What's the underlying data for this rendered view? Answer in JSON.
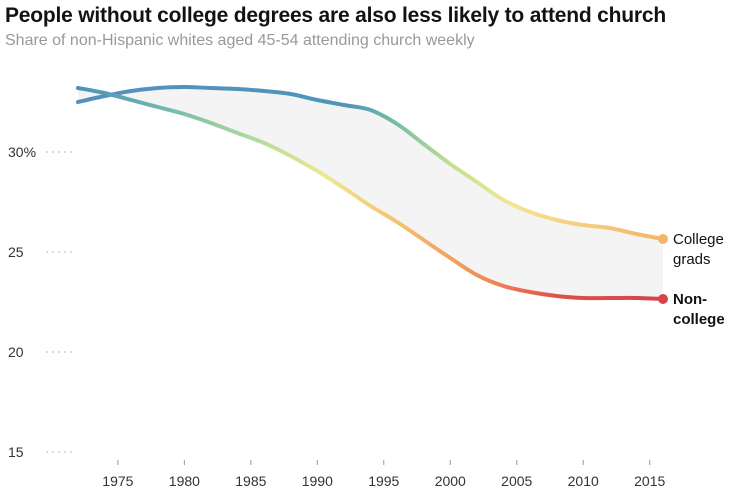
{
  "chart_data": {
    "type": "line",
    "title": "People without college degrees are also less likely to attend church",
    "subtitle": "Share of non-Hispanic whites aged 45-54 attending church weekly",
    "xlabel": "",
    "ylabel": "",
    "xlim": [
      1972,
      2016
    ],
    "ylim": [
      15,
      34
    ],
    "x_ticks": [
      1975,
      1980,
      1985,
      1990,
      1995,
      2000,
      2005,
      2010,
      2015
    ],
    "x_tick_labels": [
      "1975",
      "1980",
      "1985",
      "1990",
      "1995",
      "2000",
      "2005",
      "2010",
      "2015"
    ],
    "y_ticks": [
      15,
      20,
      25,
      30
    ],
    "y_tick_labels": [
      "15",
      "20",
      "25",
      "30%"
    ],
    "grid": false,
    "series": [
      {
        "name": "College grads",
        "label_lines": [
          "College",
          "grads"
        ],
        "end_color": "#F5B36B",
        "x": [
          1972,
          1974,
          1976,
          1978,
          1980,
          1982,
          1984,
          1986,
          1988,
          1990,
          1992,
          1994,
          1996,
          1998,
          2000,
          2002,
          2004,
          2006,
          2008,
          2010,
          2012,
          2014,
          2016
        ],
        "y": [
          32.5,
          32.8,
          33.05,
          33.2,
          33.25,
          33.2,
          33.15,
          33.05,
          32.9,
          32.6,
          32.35,
          32.1,
          31.4,
          30.4,
          29.4,
          28.5,
          27.6,
          27.0,
          26.6,
          26.35,
          26.2,
          25.9,
          25.65
        ]
      },
      {
        "name": "Non-college",
        "label_lines": [
          "Non-",
          "college"
        ],
        "end_color": "#D7434B",
        "x": [
          1972,
          1974,
          1976,
          1978,
          1980,
          1982,
          1984,
          1986,
          1988,
          1990,
          1992,
          1994,
          1996,
          1998,
          2000,
          2002,
          2004,
          2006,
          2008,
          2010,
          2012,
          2014,
          2016
        ],
        "y": [
          33.2,
          32.95,
          32.6,
          32.25,
          31.9,
          31.45,
          30.95,
          30.45,
          29.8,
          29.05,
          28.2,
          27.3,
          26.5,
          25.6,
          24.7,
          23.85,
          23.3,
          23.0,
          22.8,
          22.7,
          22.7,
          22.7,
          22.65
        ]
      }
    ]
  }
}
